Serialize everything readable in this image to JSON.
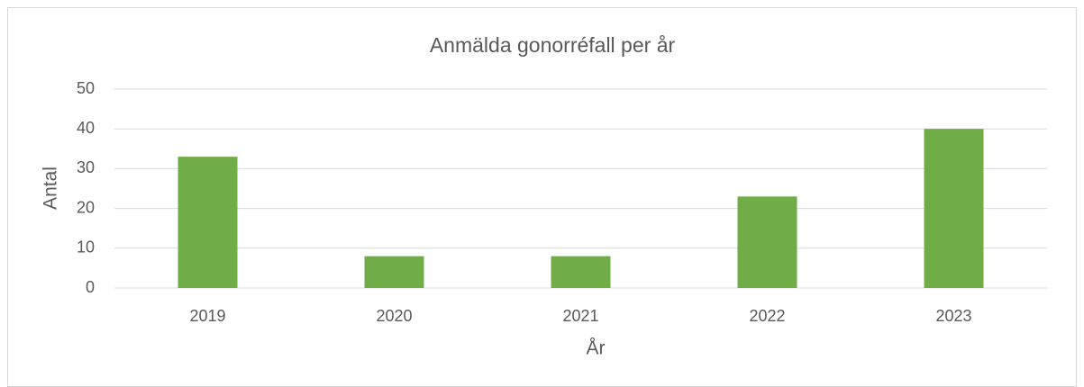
{
  "chart_data": {
    "type": "bar",
    "title": "Anmälda gonorréfall per år",
    "x_label": "År",
    "y_label": "Antal",
    "categories": [
      "2019",
      "2020",
      "2021",
      "2022",
      "2023"
    ],
    "values": [
      33,
      8,
      8,
      23,
      40
    ],
    "color": "#70ad47",
    "ylim": [
      0,
      50
    ],
    "yticks": [
      0,
      10,
      20,
      30,
      40,
      50
    ],
    "grid": true
  }
}
